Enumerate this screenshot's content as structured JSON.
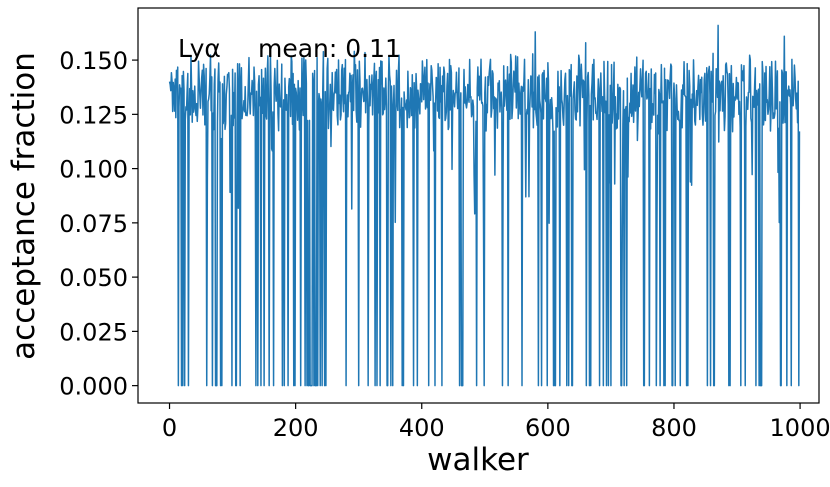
{
  "chart_data": {
    "type": "line",
    "xlabel": "walker",
    "ylabel": "acceptance fraction",
    "annotation": {
      "label": "Lyα",
      "text": "mean: 0.11"
    },
    "xlim": [
      -50,
      1030
    ],
    "ylim": [
      -0.008,
      0.174
    ],
    "xticks": [
      0,
      200,
      400,
      600,
      800,
      1000
    ],
    "xtick_labels": [
      "0",
      "200",
      "400",
      "600",
      "800",
      "1000"
    ],
    "yticks": [
      0.0,
      0.025,
      0.05,
      0.075,
      0.1,
      0.125,
      0.15
    ],
    "ytick_labels": [
      "0.000",
      "0.025",
      "0.050",
      "0.075",
      "0.100",
      "0.125",
      "0.150"
    ],
    "grid": false,
    "series": [
      {
        "color": "#1f77b4",
        "generation": {
          "n_points": 1000,
          "x_start": 0,
          "x_step": 1,
          "typical_range": [
            0.12,
            0.15
          ],
          "peaks": [
            {
              "x": 580,
              "y": 0.163
            },
            {
              "x": 660,
              "y": 0.158
            },
            {
              "x": 870,
              "y": 0.166
            },
            {
              "x": 975,
              "y": 0.161
            }
          ],
          "zero_fraction": 0.11,
          "zero_dense_range": [
            218,
            248
          ]
        }
      }
    ]
  }
}
